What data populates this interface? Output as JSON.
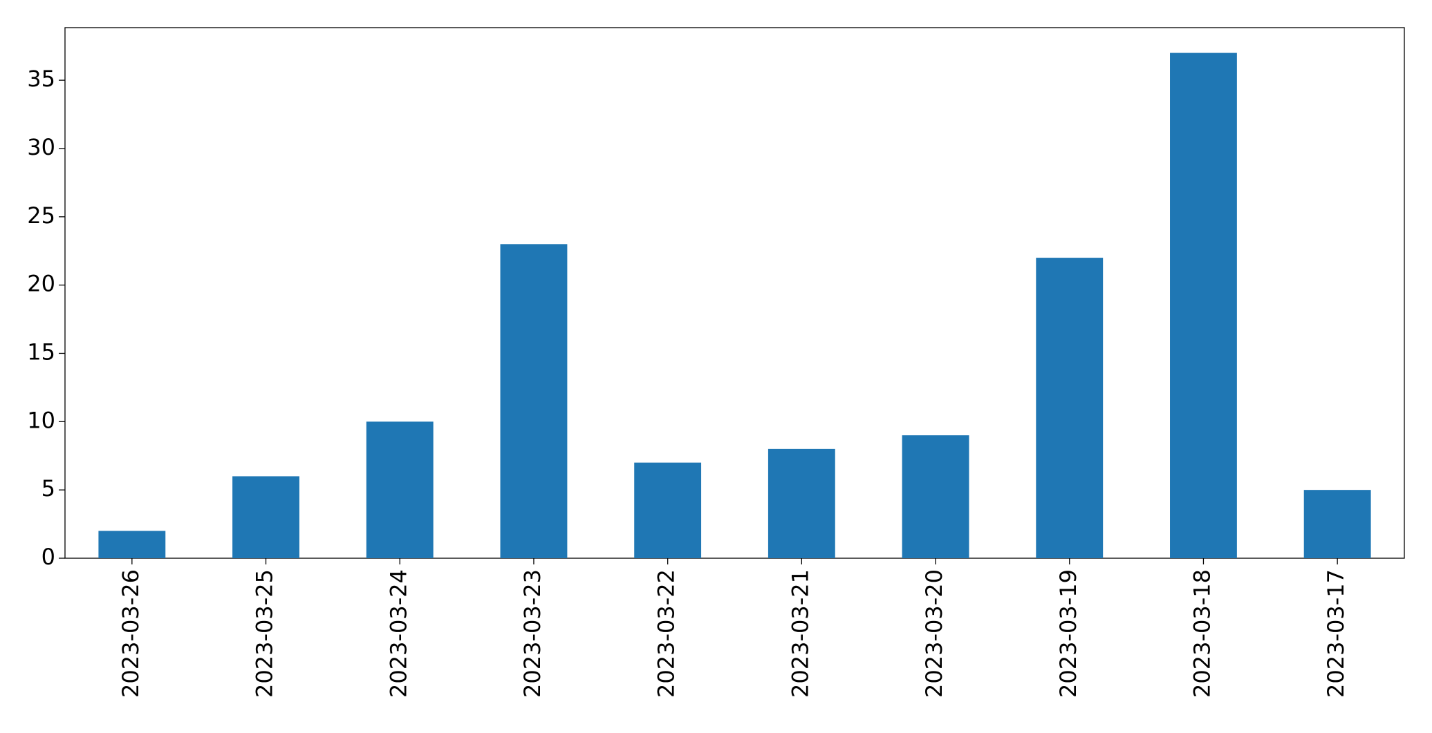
{
  "chart_data": {
    "type": "bar",
    "categories": [
      "2023-03-26",
      "2023-03-25",
      "2023-03-24",
      "2023-03-23",
      "2023-03-22",
      "2023-03-21",
      "2023-03-20",
      "2023-03-19",
      "2023-03-18",
      "2023-03-17"
    ],
    "values": [
      2,
      6,
      10,
      23,
      7,
      8,
      9,
      22,
      37,
      5
    ],
    "color": "#1f77b4",
    "ylim": [
      0,
      38.85
    ],
    "yticks": [
      0,
      5,
      10,
      15,
      20,
      25,
      30,
      35
    ],
    "grid": false
  }
}
